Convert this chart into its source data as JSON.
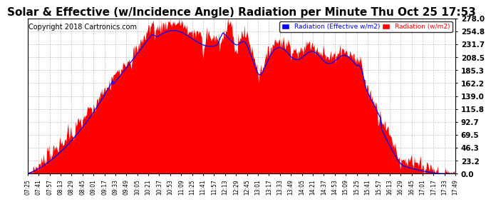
{
  "title": "Solar & Effective (w/Incidence Angle) Radiation per Minute Thu Oct 25 17:53",
  "copyright": "Copyright 2018 Cartronics.com",
  "yticks": [
    0.0,
    23.2,
    46.3,
    69.5,
    92.7,
    115.8,
    139.0,
    162.2,
    185.3,
    208.5,
    231.7,
    254.8,
    278.0
  ],
  "ymax": 278.0,
  "ymin": 0.0,
  "legend_label1": "Radiation (Effective w/m2)",
  "legend_label2": "Radiation (w/m2)",
  "legend_bg1": "#0000FF",
  "legend_bg2": "#FF0000",
  "fill_color": "#FF0000",
  "line_color": "#0000FF",
  "bg_color": "#FFFFFF",
  "grid_color": "#999999",
  "title_fontsize": 11,
  "copyright_fontsize": 7,
  "xtick_labels": [
    "07:25",
    "07:41",
    "07:57",
    "08:13",
    "08:29",
    "08:45",
    "09:01",
    "09:17",
    "09:33",
    "09:49",
    "10:05",
    "10:21",
    "10:37",
    "10:53",
    "11:09",
    "11:25",
    "11:41",
    "11:57",
    "12:13",
    "12:29",
    "12:45",
    "13:01",
    "13:17",
    "13:33",
    "13:49",
    "14:05",
    "14:21",
    "14:37",
    "14:53",
    "15:09",
    "15:25",
    "15:41",
    "15:57",
    "16:13",
    "16:29",
    "16:45",
    "17:01",
    "17:17",
    "17:33",
    "17:49"
  ]
}
